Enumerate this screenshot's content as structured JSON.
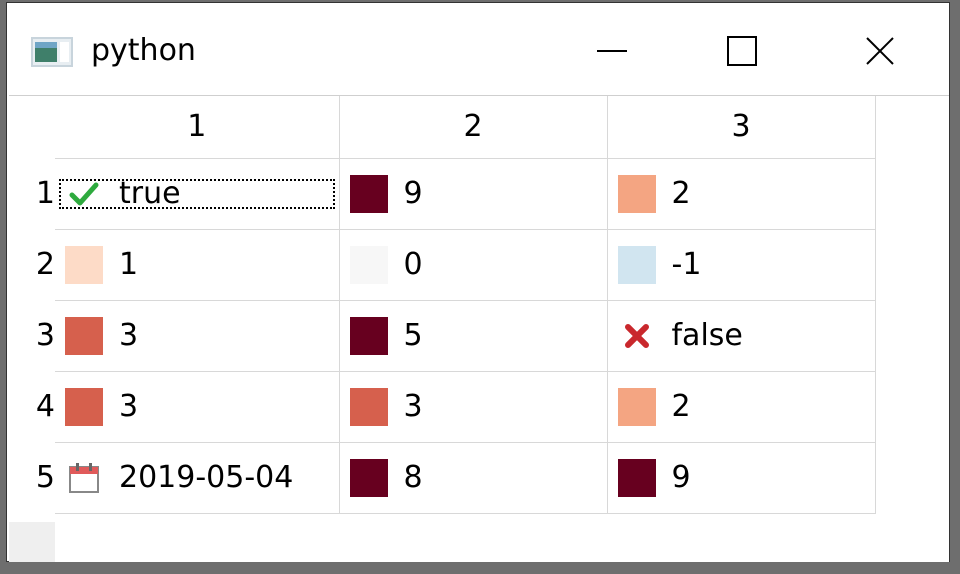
{
  "window": {
    "title": "python"
  },
  "table": {
    "columns": [
      "1",
      "2",
      "3"
    ],
    "rows": [
      {
        "label": "1",
        "cells": [
          {
            "kind": "check-icon",
            "text": "true"
          },
          {
            "kind": "swatch",
            "color": "#67001f",
            "text": "9"
          },
          {
            "kind": "swatch",
            "color": "#f4a582",
            "text": "2"
          }
        ]
      },
      {
        "label": "2",
        "cells": [
          {
            "kind": "swatch",
            "color": "#fddbc7",
            "text": "1"
          },
          {
            "kind": "swatch",
            "color": "#f7f7f7",
            "text": "0"
          },
          {
            "kind": "swatch",
            "color": "#d1e5f0",
            "text": "-1"
          }
        ]
      },
      {
        "label": "3",
        "cells": [
          {
            "kind": "swatch",
            "color": "#d6604d",
            "text": "3"
          },
          {
            "kind": "swatch",
            "color": "#67001f",
            "text": "5"
          },
          {
            "kind": "cross-icon",
            "text": "false"
          }
        ]
      },
      {
        "label": "4",
        "cells": [
          {
            "kind": "swatch",
            "color": "#d6604d",
            "text": "3"
          },
          {
            "kind": "swatch",
            "color": "#d6604d",
            "text": "3"
          },
          {
            "kind": "swatch",
            "color": "#f4a582",
            "text": "2"
          }
        ]
      },
      {
        "label": "5",
        "cells": [
          {
            "kind": "calendar-icon",
            "text": "2019-05-04"
          },
          {
            "kind": "swatch",
            "color": "#67001f",
            "text": "8"
          },
          {
            "kind": "swatch",
            "color": "#67001f",
            "text": "9"
          }
        ]
      }
    ]
  }
}
